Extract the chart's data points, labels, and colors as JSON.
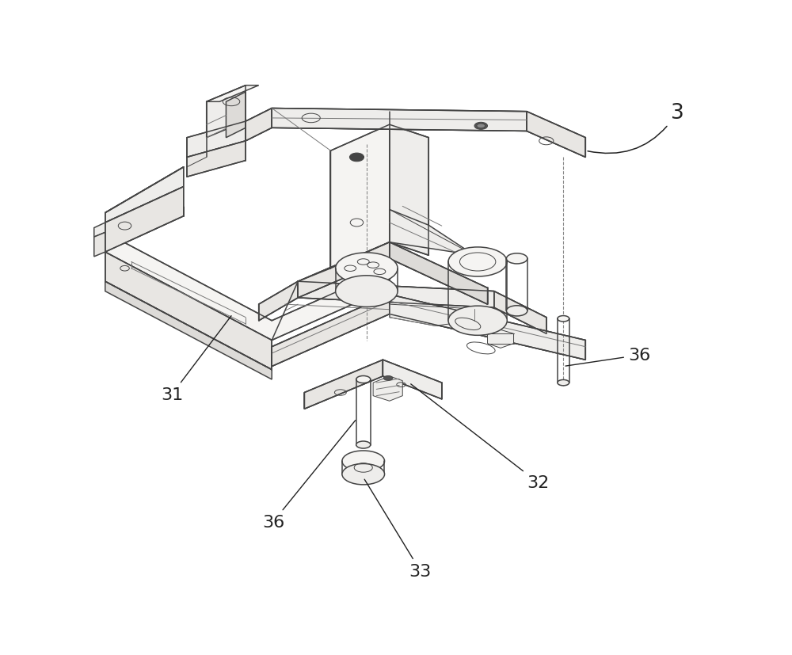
{
  "background_color": "#ffffff",
  "line_color": "#444444",
  "line_color_light": "#777777",
  "dashed_color": "#888888",
  "face_white": "#ffffff",
  "face_light1": "#f5f4f2",
  "face_light2": "#eeedeb",
  "face_light3": "#e8e6e3",
  "face_dark1": "#dddbd8",
  "face_dark2": "#d4d2cf",
  "figure_width": 10.0,
  "figure_height": 8.28,
  "label_fontsize": 16,
  "annotation_color": "#222222"
}
